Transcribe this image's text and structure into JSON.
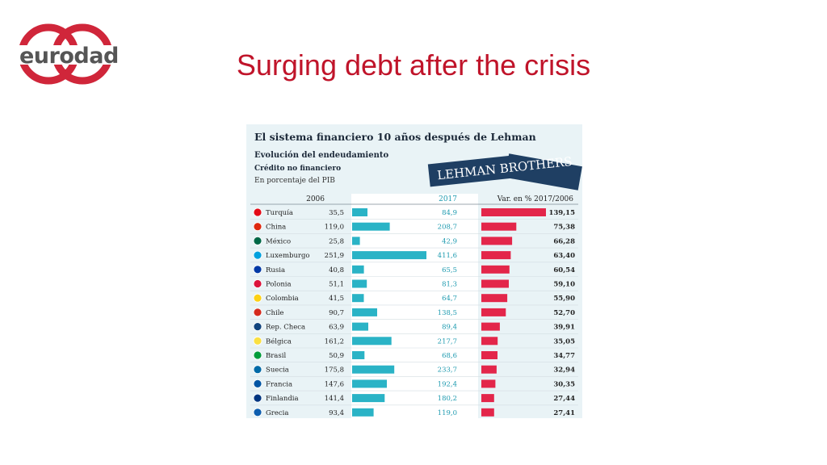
{
  "logo": {
    "text": "eurodad",
    "colors": {
      "ring": "#d0263a",
      "text": "#555555"
    }
  },
  "slide": {
    "title": "Surging debt after the crisis"
  },
  "chart_data": {
    "type": "table",
    "title": "El sistema financiero 10 años después de Lehman",
    "subtitle_lines": [
      "Evolución del endeudamiento",
      "Crédito no financiero"
    ],
    "note": "En porcentaje del PIB",
    "banner": "LEHMAN BROTHERS",
    "columns": [
      "2006",
      "2017",
      "Var. en % 2017/2006"
    ],
    "countries": [
      "Turquía",
      "China",
      "México",
      "Luxemburgo",
      "Rusia",
      "Polonia",
      "Colombia",
      "Chile",
      "Rep. Checa",
      "Bélgica",
      "Brasil",
      "Suecia",
      "Francia",
      "Finlandia",
      "Grecia"
    ],
    "values_2006": [
      35.5,
      119.0,
      25.8,
      251.9,
      40.8,
      51.1,
      41.5,
      90.7,
      63.9,
      161.2,
      50.9,
      175.8,
      147.6,
      141.4,
      93.4
    ],
    "values_2017": [
      84.9,
      208.7,
      42.9,
      411.6,
      65.5,
      81.3,
      64.7,
      138.5,
      89.4,
      217.7,
      68.6,
      233.7,
      192.4,
      180.2,
      119.0
    ],
    "var_pct": [
      139.15,
      75.38,
      66.28,
      63.4,
      60.54,
      59.1,
      55.9,
      52.7,
      39.91,
      35.05,
      34.77,
      32.94,
      30.35,
      27.44,
      27.41
    ],
    "labels_2006": [
      "35,5",
      "119,0",
      "25,8",
      "251,9",
      "40,8",
      "51,1",
      "41,5",
      "90,7",
      "63,9",
      "161,2",
      "50,9",
      "175,8",
      "147,6",
      "141,4",
      "93,4"
    ],
    "labels_2017": [
      "84,9",
      "208,7",
      "42,9",
      "411,6",
      "65,5",
      "81,3",
      "64,7",
      "138,5",
      "89,4",
      "217,7",
      "68,6",
      "233,7",
      "192,4",
      "180,2",
      "119,0"
    ],
    "labels_var": [
      "139,15",
      "75,38",
      "66,28",
      "63,40",
      "60,54",
      "59,10",
      "55,90",
      "52,70",
      "39,91",
      "35,05",
      "34,77",
      "32,94",
      "30,35",
      "27,44",
      "27,41"
    ],
    "flags": [
      "turkey-flag",
      "china-flag",
      "mexico-flag",
      "luxembourg-flag",
      "russia-flag",
      "poland-flag",
      "colombia-flag",
      "chile-flag",
      "czech-flag",
      "belgium-flag",
      "brazil-flag",
      "sweden-flag",
      "france-flag",
      "finland-flag",
      "greece-flag"
    ],
    "colors": {
      "bar_2017": "#2ab3c6",
      "bar_var": "#e3264a",
      "panel_bg": "#e9f3f6",
      "header_text": "#1d2a3a",
      "value_2017_text": "#1f9bb0"
    }
  }
}
